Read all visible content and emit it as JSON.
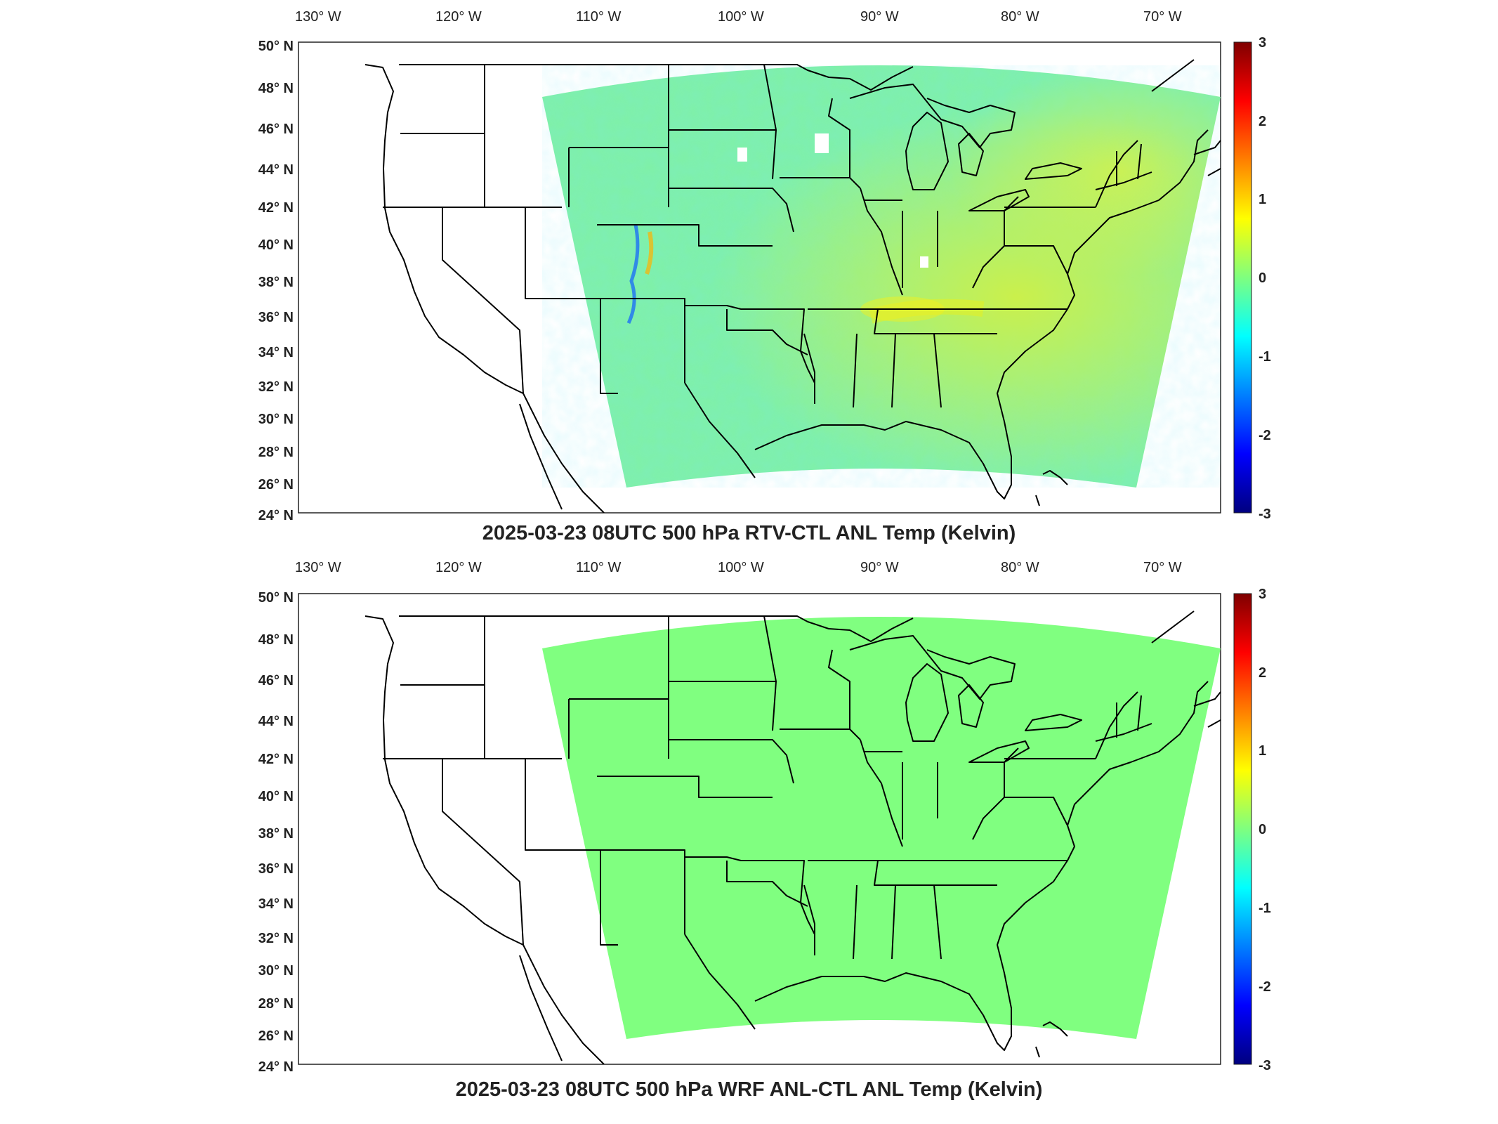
{
  "panels": [
    {
      "title": "2025-03-23 08UTC 500 hPa RTV-CTL ANL Temp (Kelvin)",
      "field": "variable",
      "lon_labels": [
        "130° W",
        "120° W",
        "110° W",
        "100° W",
        "90° W",
        "80° W",
        "70° W"
      ],
      "lat_labels": [
        "50° N",
        "48° N",
        "46° N",
        "44° N",
        "42° N",
        "40° N",
        "38° N",
        "36° N",
        "34° N",
        "32° N",
        "30° N",
        "28° N",
        "26° N",
        "24° N"
      ],
      "colorbar": {
        "ticks": [
          "3",
          "2",
          "1",
          "0",
          "-1",
          "-2",
          "-3"
        ],
        "min": -3,
        "max": 3
      }
    },
    {
      "title": "2025-03-23 08UTC 500 hPa WRF ANL-CTL ANL Temp (Kelvin)",
      "field": "uniform-zero",
      "lon_labels": [
        "130° W",
        "120° W",
        "110° W",
        "100° W",
        "90° W",
        "80° W",
        "70° W"
      ],
      "lat_labels": [
        "50° N",
        "48° N",
        "46° N",
        "44° N",
        "42° N",
        "40° N",
        "38° N",
        "36° N",
        "34° N",
        "32° N",
        "30° N",
        "28° N",
        "26° N",
        "24° N"
      ],
      "colorbar": {
        "ticks": [
          "3",
          "2",
          "1",
          "0",
          "-1",
          "-2",
          "-3"
        ],
        "min": -3,
        "max": 3
      }
    }
  ],
  "colormap": [
    "#00007f",
    "#0000ff",
    "#007fff",
    "#00ffff",
    "#7fff7f",
    "#ffff00",
    "#ff7f00",
    "#ff0000",
    "#7f0000"
  ]
}
